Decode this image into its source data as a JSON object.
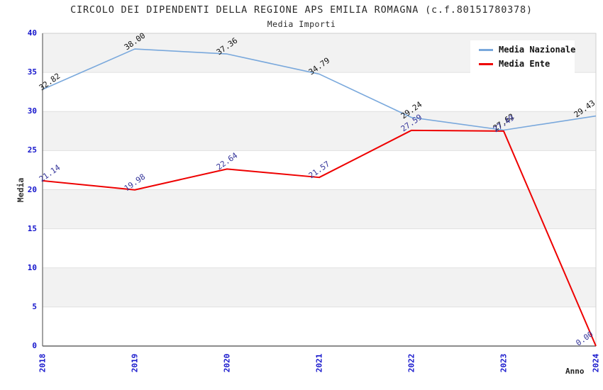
{
  "title": "CIRCOLO DEI DIPENDENTI DELLA REGIONE APS EMILIA ROMAGNA (c.f.80151780378)",
  "subtitle": "Media Importi",
  "chart_data": {
    "type": "line",
    "categories": [
      "2018",
      "2019",
      "2020",
      "2021",
      "2022",
      "2023",
      "2024"
    ],
    "series": [
      {
        "name": "Media Nazionale",
        "color": "#79a8dc",
        "label_color": "#111111",
        "values": [
          32.82,
          38.0,
          37.36,
          34.79,
          29.24,
          27.62,
          29.43
        ]
      },
      {
        "name": "Media Ente",
        "color": "#ee0000",
        "label_color": "#333399",
        "values": [
          21.14,
          19.98,
          22.64,
          21.57,
          27.59,
          27.49,
          0.0
        ]
      }
    ],
    "xlabel": "Anno",
    "ylabel": "Media",
    "ylim": [
      0,
      40
    ],
    "ytick_step": 5,
    "yticks": [
      0,
      5,
      10,
      15,
      20,
      25,
      30,
      35,
      40
    ],
    "grid": true,
    "legend_position": "top-right",
    "value_label_decimals": 2,
    "colors": {
      "tick_label": "#1515cc",
      "band_alt": "#f2f2f2",
      "band_main": "#ffffff",
      "gridline": "#e0e0e0",
      "plot_border": "#cfcfcf",
      "axis": "#666666",
      "title_text": "#2a2a2a"
    }
  }
}
